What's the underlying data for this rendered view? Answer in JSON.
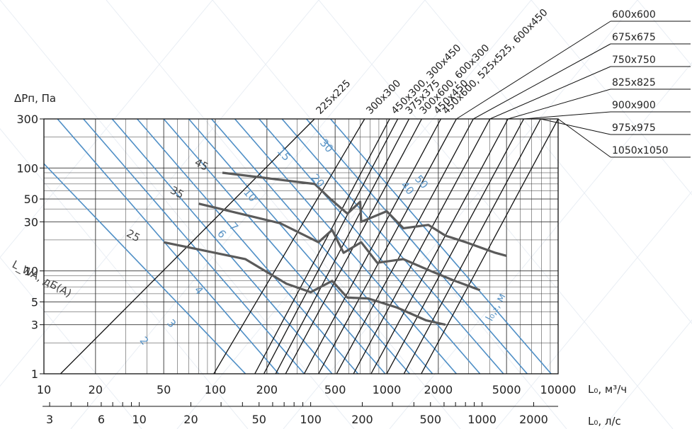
{
  "chart_data": {
    "type": "line",
    "x_scale": "log",
    "y_scale": "log",
    "xlim": [
      10,
      10000
    ],
    "ylim": [
      1,
      300
    ],
    "x_ticks": [
      10,
      20,
      50,
      100,
      200,
      500,
      1000,
      2000,
      5000,
      10000
    ],
    "y_ticks": [
      1,
      3,
      5,
      10,
      30,
      50,
      100,
      300
    ],
    "x_label": "L₀, м³/ч",
    "y_label": "ΔPп, Па",
    "x2_label": "L₀, л/с",
    "x2_ticks": [
      3,
      6,
      10,
      20,
      50,
      100,
      200,
      500,
      1000,
      2000
    ],
    "grid": true,
    "size_series": [
      {
        "name": "225x225",
        "x": [
          12.5,
          379
        ],
        "y": [
          1,
          300
        ]
      },
      {
        "name": "300x300",
        "x": [
          98,
          743
        ],
        "y": [
          1,
          300
        ]
      },
      {
        "name": "450x300, 300x450",
        "x": [
          170,
          1040
        ],
        "y": [
          1,
          300
        ]
      },
      {
        "name": "375x375",
        "x": [
          192,
          1160
        ],
        "y": [
          1,
          300
        ]
      },
      {
        "name": "300x600, 600x300",
        "x": [
          225,
          1350
        ],
        "y": [
          1,
          300
        ]
      },
      {
        "name": "450x450",
        "x": [
          257,
          1600
        ],
        "y": [
          1,
          300
        ]
      },
      {
        "name": "450x600, 525x525, 600x450",
        "x": [
          330,
          2070
        ],
        "y": [
          1,
          300
        ]
      },
      {
        "name": "600x600",
        "x": [
          400,
          2550
        ],
        "y": [
          1,
          300
        ]
      },
      {
        "name": "675x675",
        "x": [
          510,
          3200
        ],
        "y": [
          1,
          300
        ]
      },
      {
        "name": "750x750",
        "x": [
          640,
          4000
        ],
        "y": [
          1,
          300
        ]
      },
      {
        "name": "825x825",
        "x": [
          810,
          5100
        ],
        "y": [
          1,
          300
        ]
      },
      {
        "name": "900x900",
        "x": [
          1000,
          6300
        ],
        "y": [
          1,
          300
        ]
      },
      {
        "name": "975x975",
        "x": [
          1260,
          7900
        ],
        "y": [
          1,
          300
        ]
      },
      {
        "name": "1050x1050",
        "x": [
          1590,
          10000
        ],
        "y": [
          1,
          300
        ]
      }
    ],
    "noise_series": [
      {
        "name": "L_WA, дБ(А)",
        "label_values": [
          "25",
          "35",
          "45"
        ]
      },
      {
        "x": [
          110,
          380,
          470,
          590,
          700,
          710,
          1000,
          1250,
          1750,
          2200,
          2900,
          4300,
          5000
        ],
        "y": [
          90,
          70,
          50,
          36,
          47,
          30,
          38,
          26,
          28,
          22,
          19,
          15,
          14
        ]
      },
      {
        "x": [
          80,
          240,
          400,
          480,
          560,
          710,
          880,
          1250,
          1800,
          2500,
          3500
        ],
        "y": [
          45,
          29,
          19,
          25,
          15,
          19,
          12,
          13,
          10,
          8,
          6.5
        ]
      },
      {
        "x": [
          50,
          150,
          260,
          360,
          480,
          590,
          780,
          1150,
          1700,
          2200
        ],
        "y": [
          19,
          13,
          7.5,
          6.2,
          8,
          5.5,
          5.4,
          4.4,
          3.3,
          3
        ]
      }
    ],
    "throw_series": {
      "name": "l₀,₂, м",
      "lines": [
        {
          "x": [
            10,
            150
          ],
          "y": [
            110,
            1
          ]
        },
        {
          "x": [
            12,
            234
          ],
          "y": [
            300,
            1
          ]
        },
        {
          "x": [
            17,
            330
          ],
          "y": [
            300,
            1
          ]
        },
        {
          "x": [
            25,
            480
          ],
          "y": [
            300,
            1
          ]
        },
        {
          "x": [
            35,
            680
          ],
          "y": [
            300,
            1
          ]
        },
        {
          "x": [
            50,
            980
          ],
          "y": [
            300,
            1
          ]
        },
        {
          "x": [
            70,
            1360
          ],
          "y": [
            300,
            1
          ]
        },
        {
          "x": [
            95,
            1850
          ],
          "y": [
            300,
            1
          ]
        },
        {
          "x": [
            130,
            2550
          ],
          "y": [
            300,
            1
          ]
        },
        {
          "x": [
            180,
            3500
          ],
          "y": [
            300,
            1
          ]
        },
        {
          "x": [
            245,
            4800
          ],
          "y": [
            300,
            1
          ]
        },
        {
          "x": [
            340,
            6600
          ],
          "y": [
            300,
            1
          ]
        },
        {
          "x": [
            470,
            9100
          ],
          "y": [
            300,
            1
          ]
        }
      ],
      "labels": [
        {
          "text": "2",
          "x": 36,
          "y": 2.1
        },
        {
          "text": "3",
          "x": 52,
          "y": 3.1
        },
        {
          "text": "4",
          "x": 75,
          "y": 6.5
        },
        {
          "text": "6",
          "x": 102,
          "y": 23
        },
        {
          "text": "7",
          "x": 120,
          "y": 27
        },
        {
          "text": "10",
          "x": 145,
          "y": 58
        },
        {
          "text": "15",
          "x": 228,
          "y": 145
        },
        {
          "text": "20",
          "x": 360,
          "y": 80
        },
        {
          "text": "30",
          "x": 405,
          "y": 175
        },
        {
          "text": "40",
          "x": 1200,
          "y": 68
        },
        {
          "text": "50",
          "x": 1450,
          "y": 78
        }
      ]
    }
  }
}
